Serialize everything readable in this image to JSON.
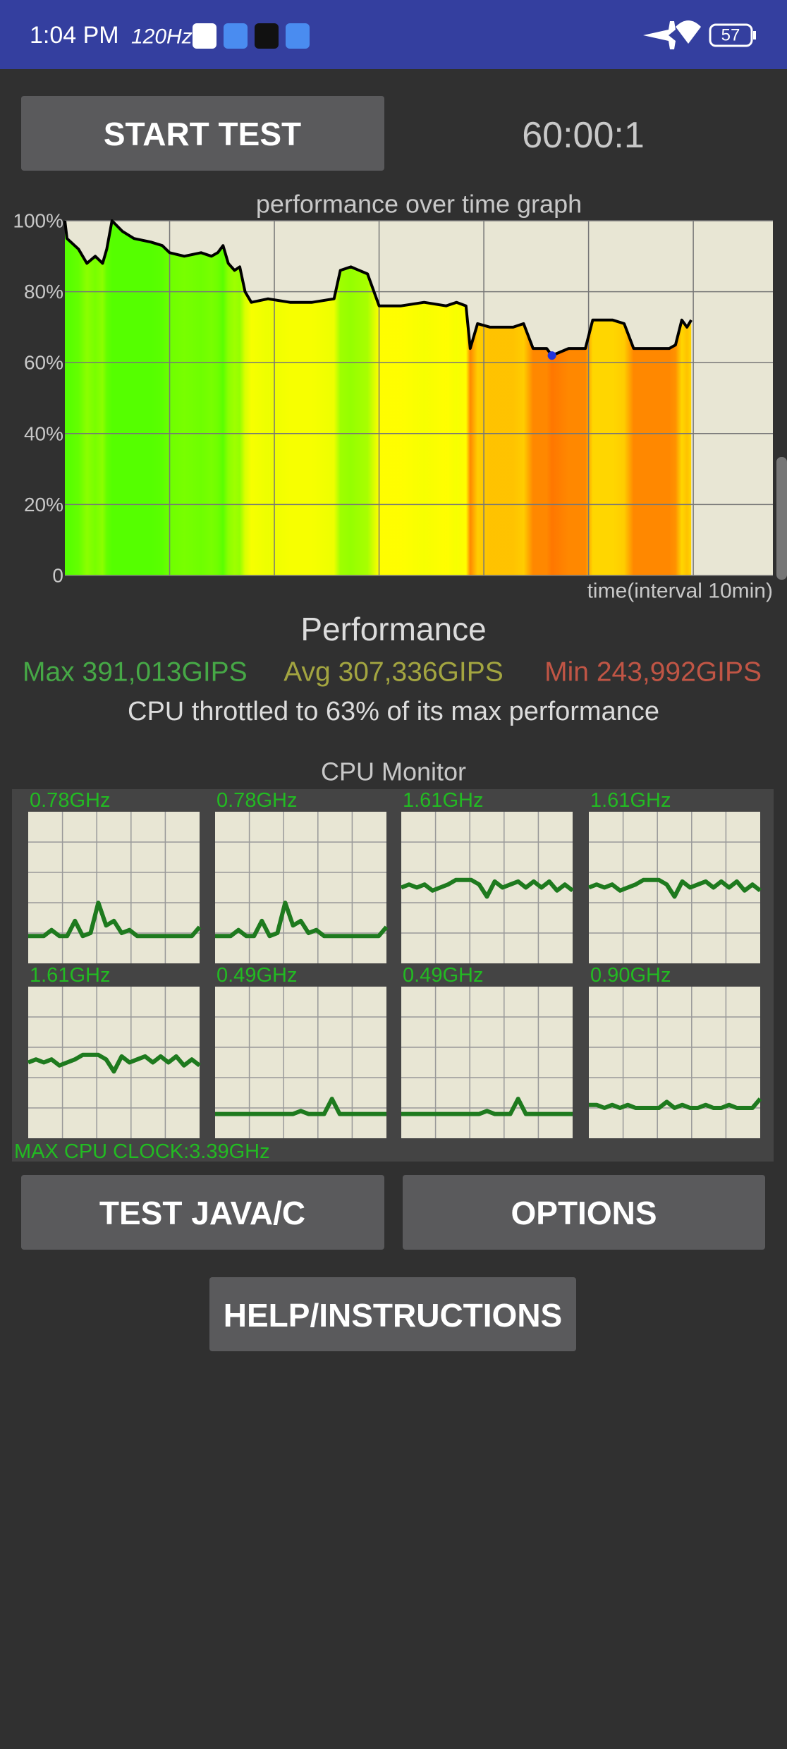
{
  "status_bar": {
    "time": "1:04 PM",
    "refresh_rate": "120Hz",
    "battery": "57"
  },
  "start_button": "START TEST",
  "timer": "60:00:1",
  "chart_data": {
    "type": "line",
    "title": "performance over time graph",
    "x_label": "time(interval 10min)",
    "x": [
      0,
      0.02,
      0.13,
      0.21,
      0.29,
      0.36,
      0.4,
      0.45,
      0.55,
      0.66,
      0.82,
      0.93,
      1.0,
      1.14,
      1.3,
      1.4,
      1.46,
      1.51,
      1.56,
      1.62,
      1.67,
      1.72,
      1.78,
      1.94,
      2.15,
      2.36,
      2.57,
      2.63,
      2.73,
      2.89,
      3.0,
      3.21,
      3.43,
      3.64,
      3.74,
      3.83,
      3.87,
      3.94,
      4.06,
      4.28,
      4.38,
      4.47,
      4.6,
      4.65,
      4.81,
      4.97,
      5.04,
      5.23,
      5.34,
      5.43,
      5.55,
      5.77,
      5.83,
      5.89,
      5.94,
      5.98
    ],
    "values": [
      100,
      95,
      92,
      88,
      90,
      88,
      92,
      100,
      97,
      95,
      94,
      93,
      91,
      90,
      91,
      90,
      91,
      93,
      88,
      86,
      87,
      80,
      77,
      78,
      77,
      77,
      78,
      86,
      87,
      85,
      76,
      76,
      77,
      76,
      77,
      76,
      64,
      71,
      70,
      70,
      71,
      64,
      64,
      62,
      64,
      64,
      72,
      72,
      71,
      64,
      64,
      64,
      65,
      72,
      70,
      72
    ],
    "xlim": [
      0,
      6.76
    ],
    "ylim": [
      0,
      100
    ],
    "yticks": [
      0,
      {
        "value": 20,
        "label": "20%"
      },
      {
        "value": 40,
        "label": "40%"
      },
      {
        "value": 60,
        "label": "60%"
      },
      {
        "value": 80,
        "label": "80%"
      },
      {
        "value": 100,
        "label": "100%"
      }
    ],
    "color": "#000000",
    "grid": true
  },
  "performance": {
    "title": "Performance",
    "max": "Max 391,013GIPS",
    "avg": "Avg 307,336GIPS",
    "min": "Min 243,992GIPS",
    "summary": "CPU throttled to 63% of its max performance"
  },
  "cpu_monitor": {
    "title": "CPU Monitor",
    "ylim": [
      0,
      100
    ],
    "color": "#1e7a1e",
    "cores": [
      {
        "label": "0.78GHz",
        "values": [
          18,
          18,
          18,
          22,
          18,
          18,
          28,
          18,
          20,
          40,
          25,
          28,
          20,
          22,
          18,
          18,
          18,
          18,
          18,
          18,
          18,
          18,
          24
        ]
      },
      {
        "label": "0.78GHz",
        "values": [
          18,
          18,
          18,
          22,
          18,
          18,
          28,
          18,
          20,
          40,
          25,
          28,
          20,
          22,
          18,
          18,
          18,
          18,
          18,
          18,
          18,
          18,
          24
        ]
      },
      {
        "label": "1.61GHz",
        "values": [
          50,
          52,
          50,
          52,
          48,
          50,
          52,
          55,
          55,
          55,
          52,
          44,
          54,
          50,
          52,
          54,
          50,
          54,
          50,
          54,
          48,
          52,
          48
        ]
      },
      {
        "label": "1.61GHz",
        "values": [
          50,
          52,
          50,
          52,
          48,
          50,
          52,
          55,
          55,
          55,
          52,
          44,
          54,
          50,
          52,
          54,
          50,
          54,
          50,
          54,
          48,
          52,
          48
        ]
      },
      {
        "label": "1.61GHz",
        "values": [
          50,
          52,
          50,
          52,
          48,
          50,
          52,
          55,
          55,
          55,
          52,
          44,
          54,
          50,
          52,
          54,
          50,
          54,
          50,
          54,
          48,
          52,
          48
        ]
      },
      {
        "label": "0.49GHz",
        "values": [
          16,
          16,
          16,
          16,
          16,
          16,
          16,
          16,
          16,
          16,
          16,
          18,
          16,
          16,
          16,
          26,
          16,
          16,
          16,
          16,
          16,
          16,
          16
        ]
      },
      {
        "label": "0.49GHz",
        "values": [
          16,
          16,
          16,
          16,
          16,
          16,
          16,
          16,
          16,
          16,
          16,
          18,
          16,
          16,
          16,
          26,
          16,
          16,
          16,
          16,
          16,
          16,
          16
        ]
      },
      {
        "label": "0.90GHz",
        "values": [
          22,
          22,
          20,
          22,
          20,
          22,
          20,
          20,
          20,
          20,
          24,
          20,
          22,
          20,
          20,
          22,
          20,
          20,
          22,
          20,
          20,
          20,
          26
        ]
      }
    ],
    "max_clock": "MAX CPU CLOCK:3.39GHz"
  },
  "buttons": [
    "TEST JAVA/C",
    "OPTIONS",
    "HELP/INSTRUCTIONS"
  ]
}
